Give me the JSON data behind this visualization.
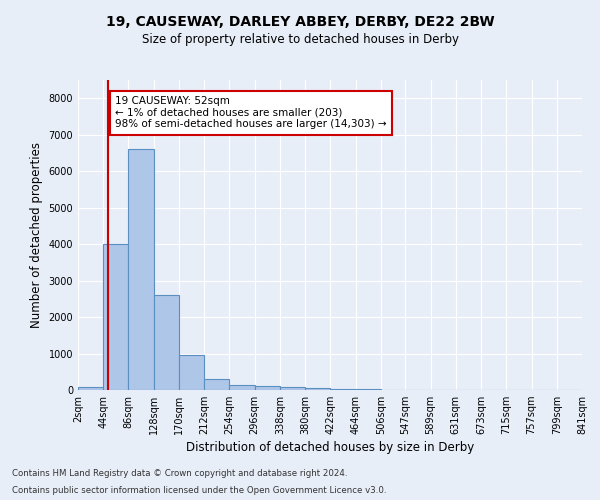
{
  "title1": "19, CAUSEWAY, DARLEY ABBEY, DERBY, DE22 2BW",
  "title2": "Size of property relative to detached houses in Derby",
  "xlabel": "Distribution of detached houses by size in Derby",
  "ylabel": "Number of detached properties",
  "bins": [
    2,
    44,
    86,
    128,
    170,
    212,
    254,
    296,
    338,
    380,
    422,
    464,
    506,
    547,
    589,
    631,
    673,
    715,
    757,
    799,
    841
  ],
  "bin_labels": [
    "2sqm",
    "44sqm",
    "86sqm",
    "128sqm",
    "170sqm",
    "212sqm",
    "254sqm",
    "296sqm",
    "338sqm",
    "380sqm",
    "422sqm",
    "464sqm",
    "506sqm",
    "547sqm",
    "589sqm",
    "631sqm",
    "673sqm",
    "715sqm",
    "757sqm",
    "799sqm",
    "841sqm"
  ],
  "bar_values": [
    75,
    4000,
    6600,
    2600,
    950,
    310,
    130,
    100,
    75,
    60,
    30,
    15,
    8,
    4,
    3,
    2,
    1,
    1,
    0,
    0
  ],
  "bar_color": "#aec6e8",
  "bar_edge_color": "#5a8fc2",
  "background_color": "#e8eef8",
  "grid_color": "#ffffff",
  "property_line_x": 52,
  "property_line_color": "#cc0000",
  "annotation_line1": "19 CAUSEWAY: 52sqm",
  "annotation_line2": "← 1% of detached houses are smaller (203)",
  "annotation_line3": "98% of semi-detached houses are larger (14,303) →",
  "annotation_box_color": "#ffffff",
  "annotation_box_edge": "#cc0000",
  "ylim": [
    0,
    8500
  ],
  "yticks": [
    0,
    1000,
    2000,
    3000,
    4000,
    5000,
    6000,
    7000,
    8000
  ],
  "footer1": "Contains HM Land Registry data © Crown copyright and database right 2024.",
  "footer2": "Contains public sector information licensed under the Open Government Licence v3.0."
}
